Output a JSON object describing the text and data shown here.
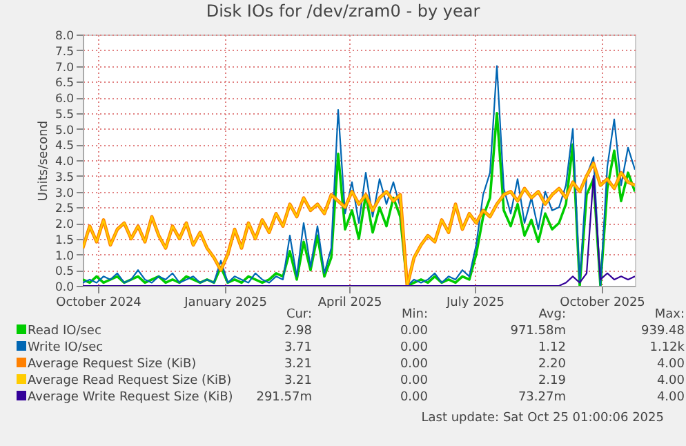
{
  "chart_data": {
    "type": "line",
    "title": "Disk IOs for /dev/zram0 - by year",
    "ylabel": "Units/second",
    "x": [
      "2024-09-20",
      "2024-09-25",
      "2024-09-30",
      "2024-10-05",
      "2024-10-10",
      "2024-10-15",
      "2024-10-20",
      "2024-10-25",
      "2024-10-30",
      "2024-11-04",
      "2024-11-09",
      "2024-11-14",
      "2024-11-19",
      "2024-11-24",
      "2024-11-29",
      "2024-12-04",
      "2024-12-09",
      "2024-12-14",
      "2024-12-19",
      "2024-12-24",
      "2024-12-29",
      "2025-01-03",
      "2025-01-08",
      "2025-01-13",
      "2025-01-18",
      "2025-01-23",
      "2025-01-28",
      "2025-02-02",
      "2025-02-07",
      "2025-02-12",
      "2025-02-17",
      "2025-02-22",
      "2025-02-27",
      "2025-03-04",
      "2025-03-09",
      "2025-03-14",
      "2025-03-19",
      "2025-03-24",
      "2025-03-29",
      "2025-04-03",
      "2025-04-08",
      "2025-04-13",
      "2025-04-18",
      "2025-04-23",
      "2025-04-28",
      "2025-05-03",
      "2025-05-08",
      "2025-05-13",
      "2025-05-18",
      "2025-05-23",
      "2025-05-28",
      "2025-06-02",
      "2025-06-07",
      "2025-06-12",
      "2025-06-17",
      "2025-06-22",
      "2025-06-27",
      "2025-07-02",
      "2025-07-07",
      "2025-07-12",
      "2025-07-17",
      "2025-07-22",
      "2025-07-27",
      "2025-08-01",
      "2025-08-06",
      "2025-08-11",
      "2025-08-16",
      "2025-08-21",
      "2025-08-26",
      "2025-08-31",
      "2025-09-05",
      "2025-09-10",
      "2025-09-15",
      "2025-09-20",
      "2025-09-25",
      "2025-09-30",
      "2025-10-05",
      "2025-10-10",
      "2025-10-15",
      "2025-10-20",
      "2025-10-25"
    ],
    "series": [
      {
        "name": "Read IO/sec",
        "color": "#00cc00",
        "values": [
          0.2,
          0.1,
          0.3,
          0.1,
          0.2,
          0.3,
          0.1,
          0.2,
          0.3,
          0.1,
          0.2,
          0.3,
          0.1,
          0.2,
          0.1,
          0.3,
          0.2,
          0.1,
          0.2,
          0.1,
          0.6,
          0.1,
          0.2,
          0.1,
          0.3,
          0.2,
          0.1,
          0.2,
          0.4,
          0.3,
          1.1,
          0.2,
          1.4,
          0.5,
          1.6,
          0.3,
          0.9,
          4.2,
          1.8,
          2.4,
          1.5,
          2.9,
          1.7,
          2.5,
          1.9,
          2.8,
          2.2,
          0.0,
          0.1,
          0.2,
          0.1,
          0.3,
          0.1,
          0.2,
          0.1,
          0.3,
          0.2,
          1.0,
          2.2,
          2.8,
          5.5,
          2.4,
          1.9,
          2.6,
          1.6,
          2.1,
          1.4,
          2.3,
          1.8,
          2.0,
          2.6,
          4.5,
          0.0,
          2.9,
          3.4,
          0.0,
          3.1,
          4.3,
          2.7,
          3.6,
          3.0
        ]
      },
      {
        "name": "Write IO/sec",
        "color": "#0066b3",
        "values": [
          0.1,
          0.2,
          0.1,
          0.3,
          0.2,
          0.4,
          0.1,
          0.2,
          0.5,
          0.2,
          0.1,
          0.3,
          0.2,
          0.4,
          0.1,
          0.2,
          0.3,
          0.1,
          0.2,
          0.1,
          0.8,
          0.1,
          0.3,
          0.2,
          0.1,
          0.4,
          0.2,
          0.1,
          0.3,
          0.2,
          1.6,
          0.3,
          2.0,
          0.6,
          1.9,
          0.4,
          1.2,
          5.6,
          2.3,
          3.3,
          2.0,
          3.6,
          2.2,
          3.4,
          2.6,
          3.3,
          2.5,
          0.0,
          0.2,
          0.1,
          0.2,
          0.4,
          0.1,
          0.3,
          0.2,
          0.5,
          0.3,
          1.3,
          2.9,
          3.6,
          7.0,
          3.1,
          2.3,
          3.4,
          2.0,
          2.8,
          1.8,
          3.0,
          2.4,
          2.5,
          3.2,
          5.0,
          0.1,
          3.5,
          4.1,
          0.0,
          3.8,
          5.3,
          3.2,
          4.4,
          3.7
        ]
      },
      {
        "name": "Average Request Size (KiB)",
        "color": "#ff8000",
        "values": [
          1.2,
          1.9,
          1.4,
          2.1,
          1.3,
          1.8,
          2.0,
          1.5,
          1.9,
          1.4,
          2.2,
          1.6,
          1.2,
          1.9,
          1.5,
          2.0,
          1.3,
          1.7,
          1.2,
          0.9,
          0.5,
          1.0,
          1.8,
          1.2,
          2.0,
          1.5,
          2.1,
          1.7,
          2.3,
          1.9,
          2.6,
          2.2,
          2.8,
          2.4,
          2.6,
          2.3,
          2.9,
          2.7,
          2.5,
          3.0,
          2.6,
          2.9,
          2.4,
          2.8,
          3.0,
          2.7,
          2.9,
          0.0,
          0.9,
          1.3,
          1.6,
          1.4,
          2.1,
          1.7,
          2.6,
          1.8,
          2.3,
          2.0,
          2.4,
          2.2,
          2.6,
          2.9,
          3.0,
          2.7,
          3.1,
          2.8,
          3.0,
          2.6,
          2.9,
          3.1,
          2.8,
          3.3,
          3.0,
          3.5,
          3.9,
          3.2,
          3.4,
          3.1,
          3.6,
          3.3,
          3.2
        ]
      },
      {
        "name": "Average Read Request Size (KiB)",
        "color": "#ffcc00",
        "values": [
          1.2,
          1.9,
          1.4,
          2.1,
          1.3,
          1.8,
          2.0,
          1.5,
          1.9,
          1.4,
          2.2,
          1.6,
          1.2,
          1.9,
          1.5,
          2.0,
          1.3,
          1.7,
          1.2,
          0.9,
          0.5,
          1.0,
          1.8,
          1.2,
          2.0,
          1.5,
          2.1,
          1.7,
          2.3,
          1.9,
          2.6,
          2.2,
          2.8,
          2.4,
          2.6,
          2.3,
          2.9,
          2.7,
          2.5,
          3.0,
          2.6,
          2.9,
          2.4,
          2.8,
          3.0,
          2.7,
          2.9,
          0.0,
          0.9,
          1.3,
          1.6,
          1.4,
          2.1,
          1.7,
          2.6,
          1.8,
          2.3,
          2.0,
          2.4,
          2.2,
          2.6,
          2.9,
          3.0,
          2.7,
          3.1,
          2.8,
          3.0,
          2.6,
          2.9,
          3.1,
          2.8,
          3.3,
          3.0,
          3.5,
          3.9,
          3.2,
          3.4,
          3.1,
          3.6,
          3.3,
          3.2
        ]
      },
      {
        "name": "Average Write Request Size (KiB)",
        "color": "#330099",
        "values": [
          0,
          0,
          0,
          0,
          0,
          0,
          0,
          0,
          0,
          0,
          0,
          0,
          0,
          0,
          0,
          0,
          0,
          0,
          0,
          0,
          0,
          0,
          0,
          0,
          0,
          0,
          0,
          0,
          0,
          0,
          0,
          0,
          0,
          0,
          0,
          0,
          0,
          0,
          0,
          0,
          0,
          0,
          0,
          0,
          0,
          0,
          0,
          0,
          0,
          0,
          0,
          0,
          0,
          0,
          0,
          0,
          0,
          0,
          0,
          0,
          0,
          0,
          0,
          0,
          0,
          0,
          0,
          0,
          0,
          0.0,
          0.1,
          0.3,
          0.1,
          0.4,
          3.5,
          0.2,
          0.4,
          0.2,
          0.3,
          0.2,
          0.3
        ]
      }
    ],
    "xlim": [
      "2024-09-20",
      "2025-10-25"
    ],
    "xticks": [
      {
        "value": "2024-10-01",
        "label": "October 2024"
      },
      {
        "value": "2025-01-01",
        "label": "January 2025"
      },
      {
        "value": "2025-04-01",
        "label": "April 2025"
      },
      {
        "value": "2025-07-01",
        "label": "July 2025"
      },
      {
        "value": "2025-10-01",
        "label": "October 2025"
      }
    ],
    "ylim": [
      0,
      8
    ],
    "yticks": [
      {
        "value": 0,
        "label": "0.0"
      },
      {
        "value": 0.5,
        "label": "0.5"
      },
      {
        "value": 1,
        "label": "1.0"
      },
      {
        "value": 1.5,
        "label": "1.5"
      },
      {
        "value": 2,
        "label": "2.0"
      },
      {
        "value": 2.5,
        "label": "2.5"
      },
      {
        "value": 3,
        "label": "3.0"
      },
      {
        "value": 3.5,
        "label": "3.5"
      },
      {
        "value": 4,
        "label": "4.0"
      },
      {
        "value": 4.5,
        "label": "4.5"
      },
      {
        "value": 5,
        "label": "5.0"
      },
      {
        "value": 5.5,
        "label": "5.5"
      },
      {
        "value": 6,
        "label": "6.0"
      },
      {
        "value": 6.5,
        "label": "6.5"
      },
      {
        "value": 7,
        "label": "7.0"
      },
      {
        "value": 7.5,
        "label": "7.5"
      },
      {
        "value": 8,
        "label": "8.0"
      }
    ],
    "grid": true,
    "legend": "bottom",
    "annotations": [
      "Cur:",
      "Min:",
      "Avg:",
      "Max:",
      "2.98",
      "0.00",
      "971.58m",
      "939.48",
      "3.71",
      "0.00",
      "1.12",
      "1.12k",
      "3.21",
      "0.00",
      "2.20",
      "4.00",
      "3.21",
      "0.00",
      "2.19",
      "4.00",
      "291.57m",
      "0.00",
      "73.27m",
      "4.00",
      "Last update: Sat Oct 25 01:00:06 2025"
    ]
  }
}
